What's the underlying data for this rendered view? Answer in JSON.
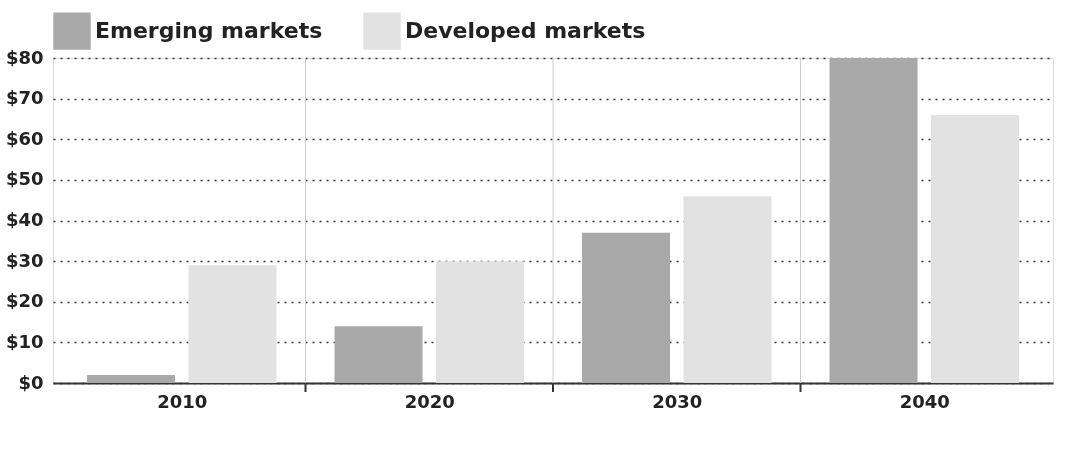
{
  "chart_data": {
    "type": "bar",
    "categories": [
      "2010",
      "2020",
      "2030",
      "2040"
    ],
    "series": [
      {
        "name": "Emerging markets",
        "color": "#a9a9a9",
        "values": [
          2,
          14,
          37,
          80
        ]
      },
      {
        "name": "Developed markets",
        "color": "#e2e2e2",
        "values": [
          29,
          30,
          46,
          66
        ]
      }
    ],
    "ylim": [
      0,
      80
    ],
    "yticks": [
      {
        "value": 0,
        "label": "$0"
      },
      {
        "value": 10,
        "label": "$10"
      },
      {
        "value": 20,
        "label": "$20"
      },
      {
        "value": 30,
        "label": "$30"
      },
      {
        "value": 40,
        "label": "$40"
      },
      {
        "value": 50,
        "label": "$50"
      },
      {
        "value": 60,
        "label": "$60"
      },
      {
        "value": 70,
        "label": "$70"
      },
      {
        "value": 80,
        "label": "$80"
      }
    ],
    "grid": true,
    "legend": "top left"
  }
}
